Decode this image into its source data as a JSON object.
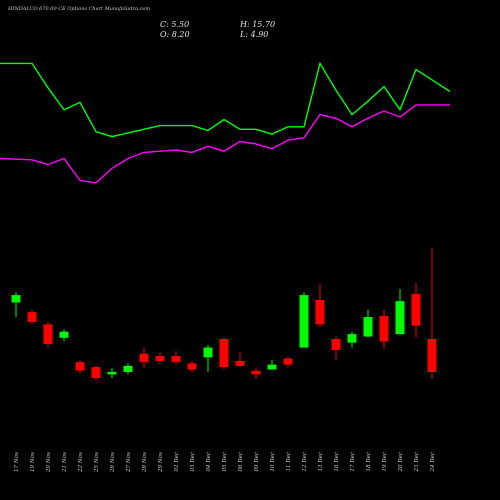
{
  "chart_data": {
    "type": "candlestick",
    "title": "HINDALCO 670.00 CE Options Chart MunafaSutra.com",
    "ohlc": {
      "C": "5.50",
      "H": "15.70",
      "O": "8.20",
      "L": "4.90"
    },
    "ylim": [
      -5,
      36
    ],
    "categories": [
      "17 Nov",
      "19 Nov",
      "20 Nov",
      "21 Nov",
      "22 Nov",
      "25 Nov",
      "26 Nov",
      "27 Nov",
      "28 Nov",
      "29 Nov",
      "02 Dec",
      "03 Dec",
      "04 Dec",
      "05 Dec",
      "06 Dec",
      "09 Dec",
      "10 Dec",
      "11 Dec",
      "12 Dec",
      "13 Dec",
      "16 Dec",
      "17 Dec",
      "18 Dec",
      "19 Dec",
      "20 Dec",
      "23 Dec",
      "24 Dec"
    ],
    "candles": [
      {
        "o": 11.2,
        "h": 12.0,
        "l": 10.0,
        "c": 11.8
      },
      {
        "o": 10.4,
        "h": 10.6,
        "l": 9.4,
        "c": 9.6
      },
      {
        "o": 9.4,
        "h": 9.6,
        "l": 7.5,
        "c": 7.8
      },
      {
        "o": 8.3,
        "h": 9.0,
        "l": 8.0,
        "c": 8.8
      },
      {
        "o": 6.3,
        "h": 6.5,
        "l": 5.4,
        "c": 5.6
      },
      {
        "o": 5.9,
        "h": 6.0,
        "l": 4.8,
        "c": 5.0
      },
      {
        "o": 5.3,
        "h": 5.8,
        "l": 5.0,
        "c": 5.5
      },
      {
        "o": 5.5,
        "h": 6.2,
        "l": 5.3,
        "c": 6.0
      },
      {
        "o": 7.0,
        "h": 7.5,
        "l": 5.8,
        "c": 6.3
      },
      {
        "o": 6.8,
        "h": 7.1,
        "l": 6.2,
        "c": 6.4
      },
      {
        "o": 6.8,
        "h": 7.2,
        "l": 6.1,
        "c": 6.3
      },
      {
        "o": 6.2,
        "h": 6.4,
        "l": 5.5,
        "c": 5.7
      },
      {
        "o": 6.7,
        "h": 7.7,
        "l": 5.5,
        "c": 7.5
      },
      {
        "o": 8.2,
        "h": 8.3,
        "l": 5.7,
        "c": 5.9
      },
      {
        "o": 6.4,
        "h": 7.1,
        "l": 5.9,
        "c": 6.0
      },
      {
        "o": 5.6,
        "h": 5.9,
        "l": 4.9,
        "c": 5.3
      },
      {
        "o": 5.7,
        "h": 6.5,
        "l": 5.7,
        "c": 6.1
      },
      {
        "o": 6.6,
        "h": 6.8,
        "l": 5.9,
        "c": 6.1
      },
      {
        "o": 7.5,
        "h": 12.0,
        "l": 7.5,
        "c": 11.8
      },
      {
        "o": 11.4,
        "h": 12.7,
        "l": 9.2,
        "c": 9.4
      },
      {
        "o": 8.2,
        "h": 8.4,
        "l": 6.5,
        "c": 7.3
      },
      {
        "o": 7.9,
        "h": 8.8,
        "l": 7.5,
        "c": 8.6
      },
      {
        "o": 8.4,
        "h": 10.6,
        "l": 8.4,
        "c": 10.0
      },
      {
        "o": 10.1,
        "h": 10.6,
        "l": 7.4,
        "c": 8.0
      },
      {
        "o": 8.6,
        "h": 12.3,
        "l": 8.6,
        "c": 11.3
      },
      {
        "o": 11.9,
        "h": 12.8,
        "l": 8.3,
        "c": 9.3
      },
      {
        "o": 8.2,
        "h": 15.7,
        "l": 4.9,
        "c": 5.5
      }
    ],
    "series": [
      {
        "color": "#00ff00",
        "values": [
          30.8,
          30.8,
          28.8,
          27.0,
          27.6,
          25.2,
          24.8,
          25.1,
          25.4,
          25.7,
          25.7,
          25.7,
          25.3,
          26.2,
          25.4,
          25.4,
          25.0,
          25.6,
          25.6,
          30.8,
          28.6,
          26.6,
          27.7,
          28.9,
          27.0,
          30.3,
          28.5
        ]
      },
      {
        "color": "#ff00ff",
        "values": [
          23.0,
          22.9,
          22.5,
          23.0,
          21.2,
          21.0,
          22.2,
          23.0,
          23.5,
          23.6,
          23.7,
          23.5,
          24.0,
          23.6,
          24.4,
          24.2,
          23.8,
          24.5,
          24.7,
          26.6,
          26.3,
          25.6,
          26.3,
          26.9,
          26.4,
          27.4,
          27.4
        ]
      }
    ],
    "colors": {
      "up": "#00ff00",
      "down": "#ff0000",
      "background": "#000000",
      "text": "#cfcfcf"
    }
  }
}
